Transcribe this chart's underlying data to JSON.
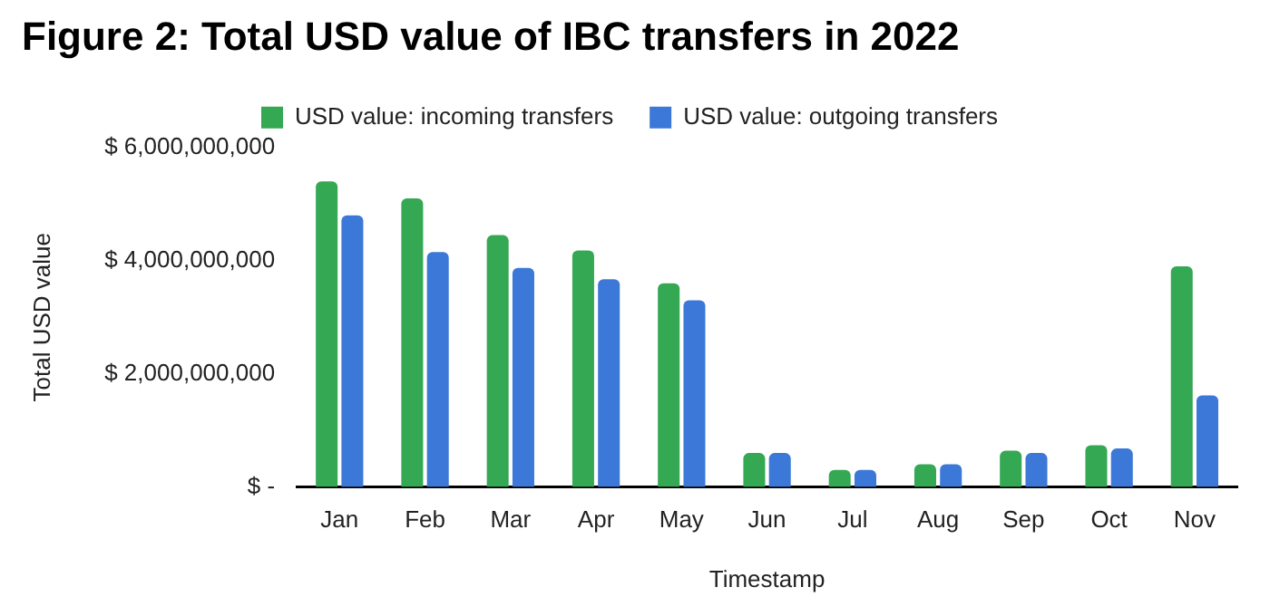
{
  "chart_data": {
    "type": "bar",
    "title": "Figure 2: Total USD value of IBC transfers in 2022",
    "xlabel": "Timestamp",
    "ylabel": "Total USD value",
    "categories": [
      "Jan",
      "Feb",
      "Mar",
      "Apr",
      "May",
      "Jun",
      "Jul",
      "Aug",
      "Sep",
      "Oct",
      "Nov"
    ],
    "series": [
      {
        "name": "USD value: incoming transfers",
        "color": "#34a853",
        "values": [
          5400000000,
          5100000000,
          4450000000,
          4180000000,
          3600000000,
          600000000,
          300000000,
          400000000,
          640000000,
          740000000,
          3900000000
        ]
      },
      {
        "name": "USD value: outgoing transfers",
        "color": "#3c78d8",
        "values": [
          4800000000,
          4150000000,
          3870000000,
          3670000000,
          3300000000,
          600000000,
          300000000,
          400000000,
          600000000,
          680000000,
          1620000000
        ]
      }
    ],
    "ylim": [
      0,
      6000000000
    ],
    "yticks": [
      {
        "value": 0,
        "label": "$ -"
      },
      {
        "value": 2000000000,
        "label": "$ 2,000,000,000"
      },
      {
        "value": 4000000000,
        "label": "$ 4,000,000,000"
      },
      {
        "value": 6000000000,
        "label": "$ 6,000,000,000"
      }
    ],
    "grid": false,
    "legend": "top"
  }
}
